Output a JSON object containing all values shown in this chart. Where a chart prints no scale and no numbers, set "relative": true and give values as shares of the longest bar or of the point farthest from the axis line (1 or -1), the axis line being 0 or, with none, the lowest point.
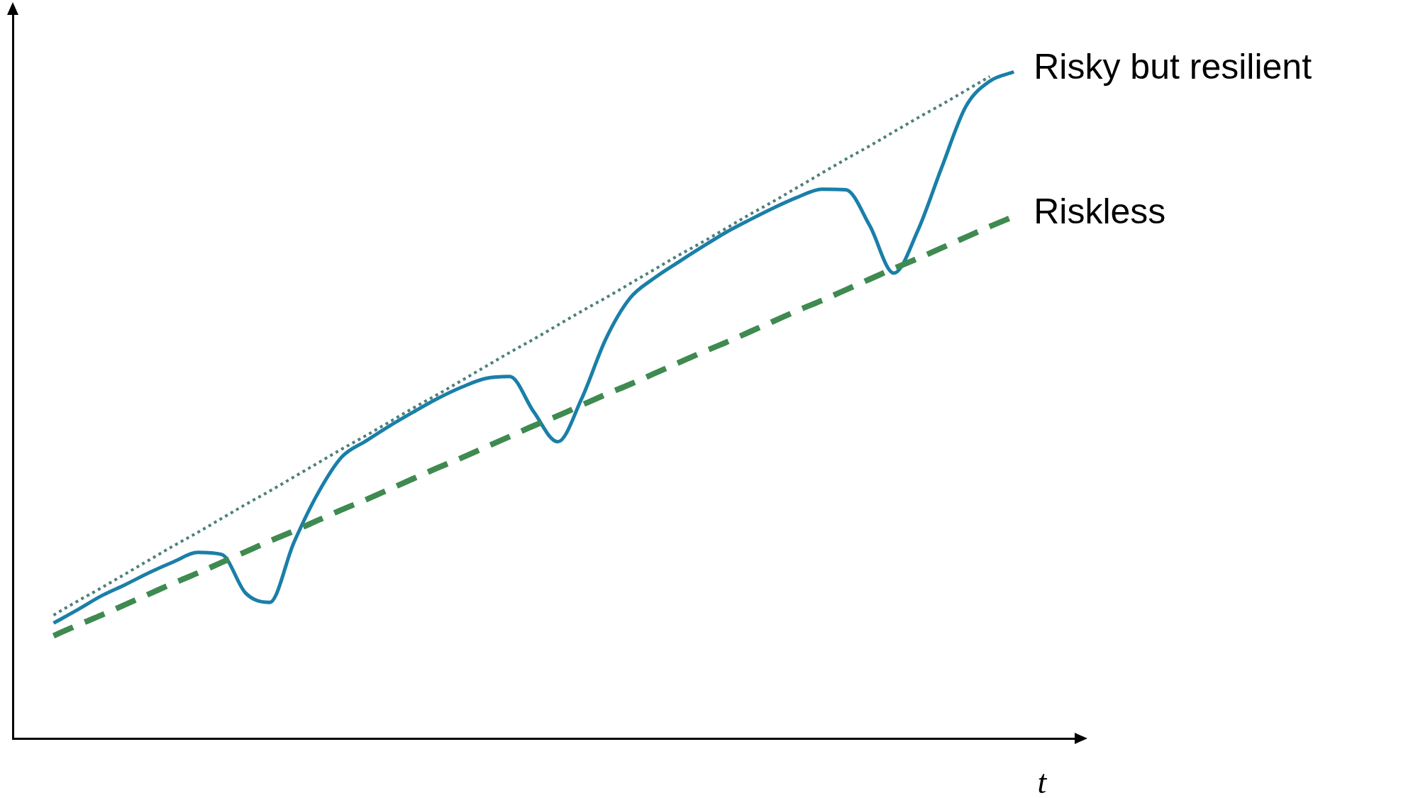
{
  "chart_data": {
    "type": "line",
    "xlabel": "t",
    "relative": true,
    "tick_labels": false,
    "categories": [
      null,
      null,
      null,
      null,
      null,
      null,
      null,
      null,
      null,
      null,
      null,
      null,
      null,
      null,
      null,
      null,
      null,
      null,
      null,
      null,
      null,
      null,
      null,
      null,
      null,
      null,
      null,
      null,
      null,
      null,
      null,
      null,
      null,
      null,
      null,
      null,
      null,
      null,
      null,
      null,
      null
    ],
    "series": [
      {
        "name": null,
        "color": "#4d7f7c",
        "line_style": "dotted",
        "values": [
          0.185,
          0.206,
          0.226,
          0.247,
          0.268,
          0.289,
          0.309,
          0.33,
          0.351,
          0.371,
          0.392,
          0.413,
          0.434,
          0.454,
          0.475,
          0.496,
          0.516,
          0.537,
          0.558,
          0.579,
          0.599,
          0.62,
          0.641,
          0.661,
          0.682,
          0.703,
          0.724,
          0.744,
          0.765,
          0.786,
          0.806,
          0.827,
          0.848,
          0.869,
          0.889,
          0.91,
          0.931,
          0.951,
          0.972,
          0.993,
          null
        ]
      },
      {
        "name": "Riskless",
        "color": "#3f8a50",
        "line_style": "dashed",
        "values": [
          0.154,
          0.17,
          0.185,
          0.201,
          0.217,
          0.233,
          0.248,
          0.264,
          0.28,
          0.296,
          0.311,
          0.327,
          0.343,
          0.358,
          0.374,
          0.39,
          0.406,
          0.421,
          0.437,
          0.453,
          0.469,
          0.484,
          0.5,
          0.516,
          0.531,
          0.547,
          0.563,
          0.579,
          0.594,
          0.61,
          0.626,
          0.642,
          0.657,
          0.673,
          0.689,
          0.705,
          0.72,
          0.736,
          0.752,
          0.768,
          0.783
        ]
      },
      {
        "name": "Risky but resilient",
        "color": "#1a7fa8",
        "line_style": "solid",
        "values": [
          0.173,
          0.193,
          0.214,
          0.231,
          0.249,
          0.265,
          0.279,
          0.276,
          0.218,
          0.204,
          0.293,
          0.367,
          0.422,
          0.446,
          0.469,
          0.49,
          0.51,
          0.527,
          0.54,
          0.543,
          0.49,
          0.445,
          0.51,
          0.599,
          0.66,
          0.69,
          0.714,
          0.737,
          0.759,
          0.778,
          0.796,
          0.812,
          0.824,
          0.823,
          0.769,
          0.698,
          0.762,
          0.857,
          0.948,
          0.986,
          1
        ]
      }
    ]
  }
}
